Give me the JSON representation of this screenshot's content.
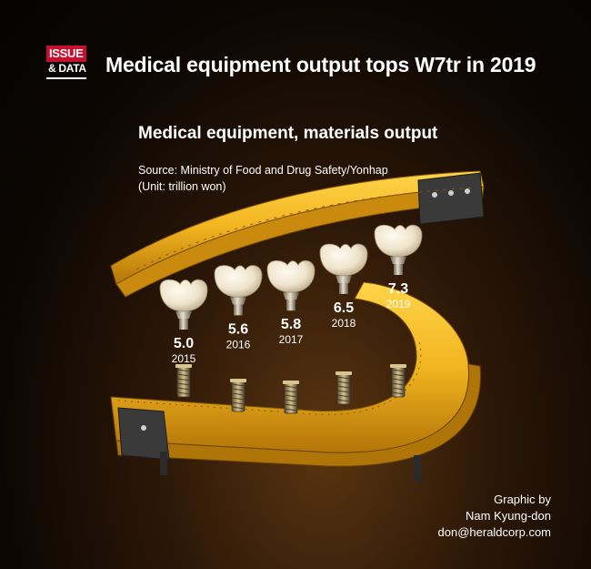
{
  "brand": {
    "line1": "ISSUE",
    "line2": "& DATA"
  },
  "headline": "Medical equipment output tops W7tr in 2019",
  "credit": {
    "line1": "Graphic by",
    "line2": "Nam Kyung-don",
    "line3": "don@heraldcorp.com"
  },
  "colors": {
    "accent": "#c8102e",
    "track": "#f2b824",
    "background": "#0d0703",
    "tooth": "#f1e8d6"
  },
  "chart_data": {
    "type": "bar",
    "title": "Medical equipment, materials output",
    "source": "Source: Ministry of Food and Drug Safety/Yonhap",
    "unit": "(Unit: trillion won)",
    "categories": [
      "2015",
      "2016",
      "2017",
      "2018",
      "2019"
    ],
    "value_labels": [
      "5.0",
      "5.6",
      "5.8",
      "6.5",
      "7.3"
    ],
    "values": [
      5.0,
      5.6,
      5.8,
      6.5,
      7.3
    ]
  }
}
